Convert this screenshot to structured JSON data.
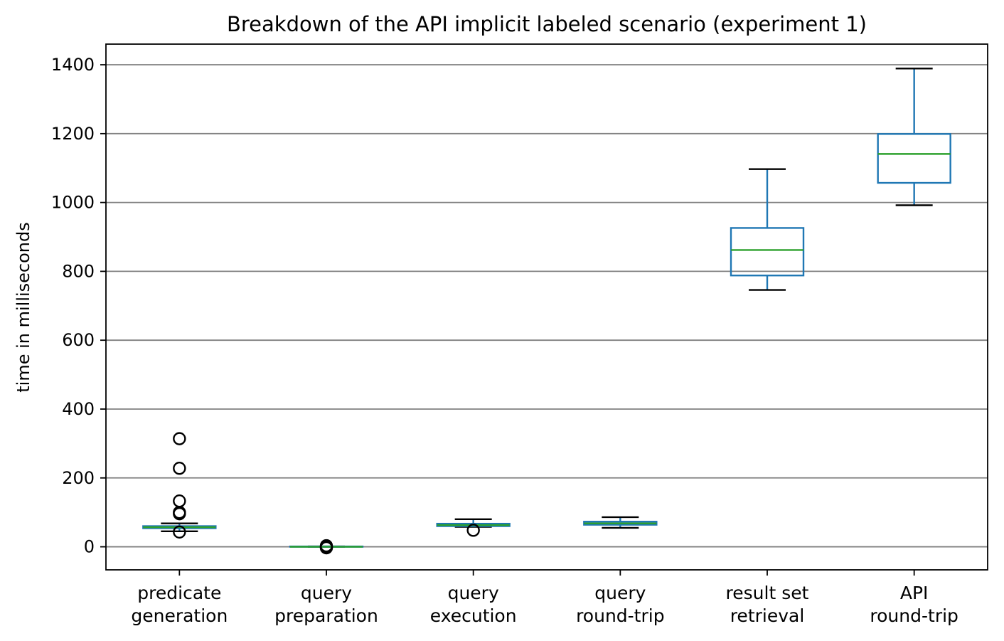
{
  "chart_data": {
    "type": "box",
    "title": "Breakdown of the API implicit labeled scenario (experiment 1)",
    "xlabel": "",
    "ylabel": "time in milliseconds",
    "ylim": [
      -67,
      1460
    ],
    "yticks": [
      0,
      200,
      400,
      600,
      800,
      1000,
      1200,
      1400
    ],
    "grid": "y",
    "colors": {
      "box": "#1f77b4",
      "median": "#2ca02c",
      "whisker_cap": "#000000",
      "flier": "#000000",
      "grid": "#808080"
    },
    "categories": [
      [
        "predicate",
        "generation"
      ],
      [
        "query",
        "preparation"
      ],
      [
        "query",
        "execution"
      ],
      [
        "query",
        "round-trip"
      ],
      [
        "result set",
        "retrieval"
      ],
      [
        "API",
        "round-trip"
      ]
    ],
    "boxes": [
      {
        "whislo": 45,
        "q1": 54,
        "med": 57,
        "q3": 60,
        "whishi": 68,
        "fliers": [
          43,
          96,
          100,
          133,
          228,
          314
        ]
      },
      {
        "whislo": 0,
        "q1": 0,
        "med": 0,
        "q3": 1,
        "whishi": 1,
        "fliers": [
          -3,
          0,
          3
        ]
      },
      {
        "whislo": 58,
        "q1": 60,
        "med": 63,
        "q3": 67,
        "whishi": 80,
        "fliers": [
          48
        ]
      },
      {
        "whislo": 55,
        "q1": 64,
        "med": 68,
        "q3": 73,
        "whishi": 86
      },
      {
        "whislo": 746,
        "q1": 788,
        "med": 862,
        "q3": 926,
        "whishi": 1097
      },
      {
        "whislo": 992,
        "q1": 1057,
        "med": 1141,
        "q3": 1199,
        "whishi": 1389
      }
    ]
  }
}
